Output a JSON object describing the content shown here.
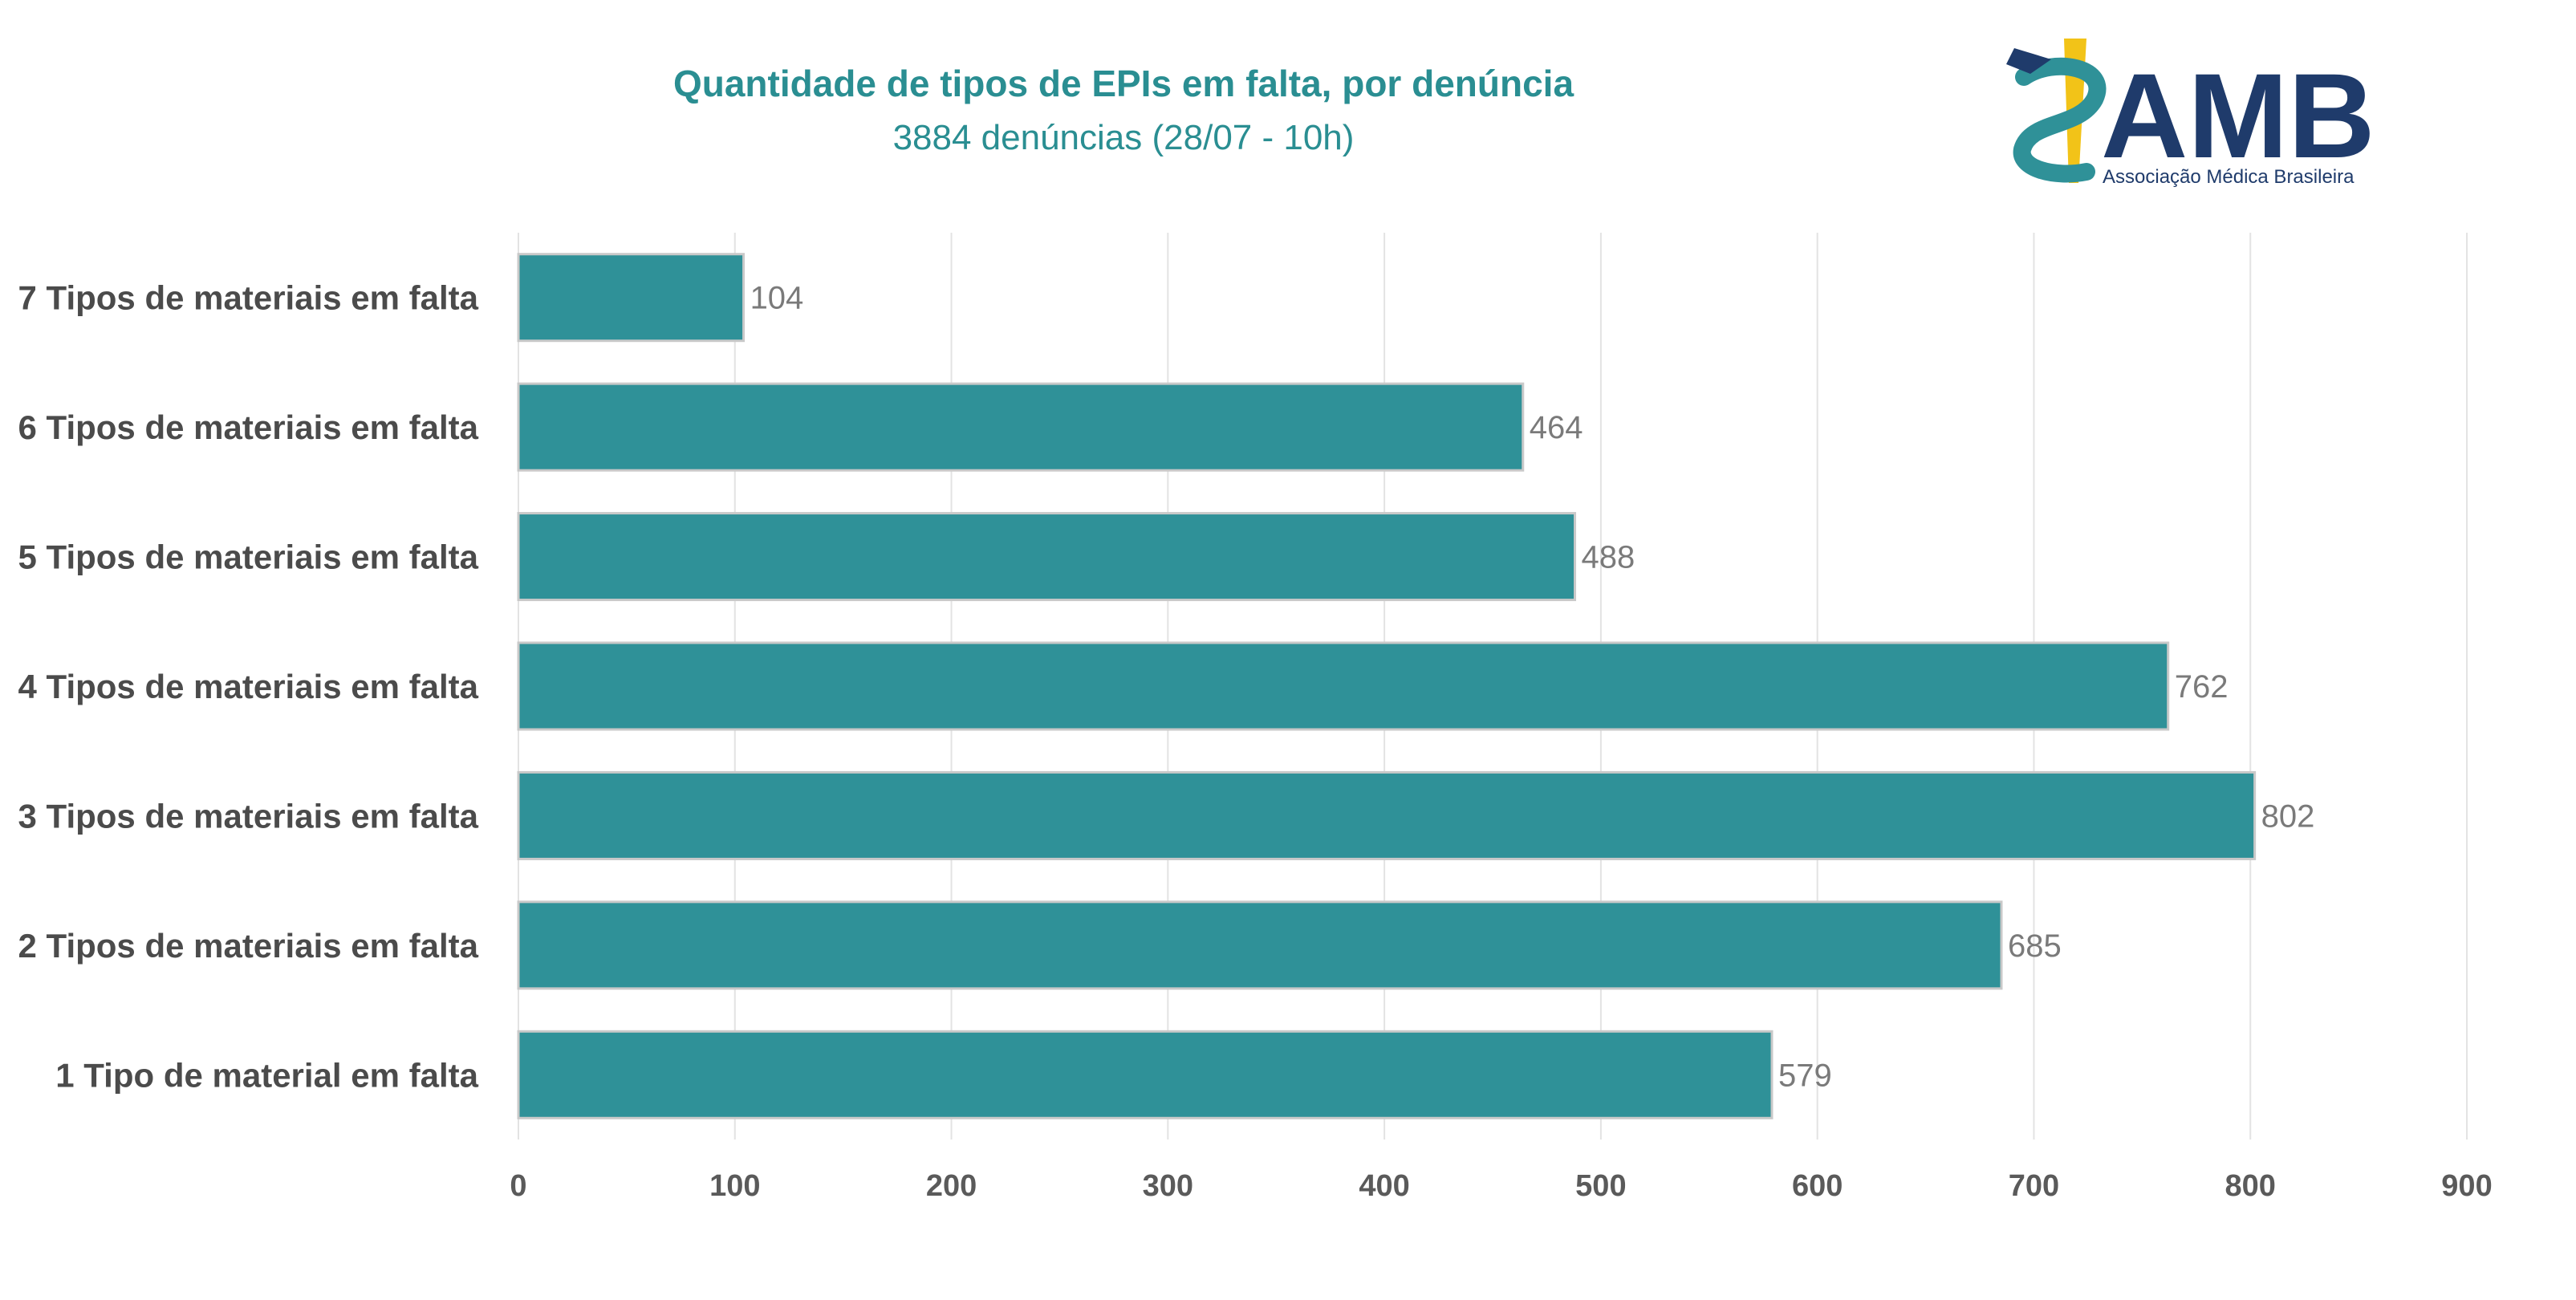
{
  "chart_data": {
    "type": "bar",
    "orientation": "horizontal",
    "title": "Quantidade de tipos de EPIs em falta, por denúncia",
    "subtitle": "3884 denúncias (28/07 - 10h)",
    "categories": [
      "7 Tipos de materiais em falta",
      "6 Tipos de materiais em falta",
      "5 Tipos de materiais em falta",
      "4 Tipos de materiais em falta",
      "3 Tipos de materiais em falta",
      "2 Tipos de materiais em falta",
      "1 Tipo de material em falta"
    ],
    "values": [
      104,
      464,
      488,
      762,
      802,
      685,
      579
    ],
    "xlim": [
      0,
      900
    ],
    "x_ticks": [
      0,
      100,
      200,
      300,
      400,
      500,
      600,
      700,
      800,
      900
    ],
    "grid": "vertical",
    "legend": "none",
    "bar_color": "#2f9198"
  },
  "logo": {
    "text": "AMB",
    "subtitle": "Associação Médica Brasileira",
    "text_color": "#1f3b6b",
    "accent_yellow": "#f2c318",
    "accent_teal": "#2f9198"
  }
}
